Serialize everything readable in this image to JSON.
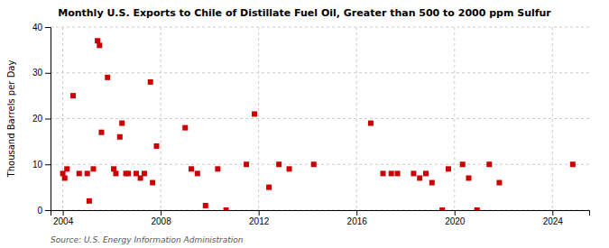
{
  "chart_data": {
    "type": "scatter",
    "title": "Monthly U.S. Exports to Chile of Distillate Fuel Oil, Greater than 500 to 2000 ppm Sulfur",
    "y_label": "Thousand Barrels per Day",
    "annotations": [
      "Source: U.S. Energy Information Administration"
    ],
    "color": "#cc0000",
    "marker": "square",
    "grid": true,
    "xlim": [
      2003.5,
      2025.5
    ],
    "ylim": [
      0,
      40
    ],
    "xticks": [
      2004,
      2008,
      2012,
      2016,
      2020,
      2024
    ],
    "yticks": [
      0,
      10,
      20,
      30,
      40
    ],
    "x": [
      2004.0,
      2004.08,
      2004.17,
      2004.42,
      2004.67,
      2005.0,
      2005.08,
      2005.25,
      2005.42,
      2005.5,
      2005.58,
      2005.83,
      2006.08,
      2006.17,
      2006.33,
      2006.42,
      2006.58,
      2006.67,
      2007.0,
      2007.17,
      2007.33,
      2007.58,
      2007.67,
      2007.83,
      2009.0,
      2009.25,
      2009.5,
      2009.83,
      2010.33,
      2010.67,
      2011.5,
      2011.83,
      2012.42,
      2012.83,
      2013.25,
      2014.25,
      2016.58,
      2017.08,
      2017.42,
      2017.67,
      2018.33,
      2018.58,
      2018.83,
      2019.08,
      2019.5,
      2019.75,
      2020.33,
      2020.58,
      2020.92,
      2021.42,
      2021.83,
      2024.83
    ],
    "values": [
      8,
      7,
      9,
      25,
      8,
      8,
      2,
      9,
      37,
      36,
      17,
      29,
      9,
      8,
      16,
      19,
      8,
      8,
      8,
      7,
      8,
      28,
      6,
      14,
      18,
      9,
      8,
      1,
      9,
      0,
      10,
      21,
      5,
      10,
      9,
      10,
      19,
      8,
      8,
      8,
      8,
      7,
      8,
      6,
      0,
      9,
      10,
      7,
      0,
      10,
      6,
      10
    ]
  }
}
